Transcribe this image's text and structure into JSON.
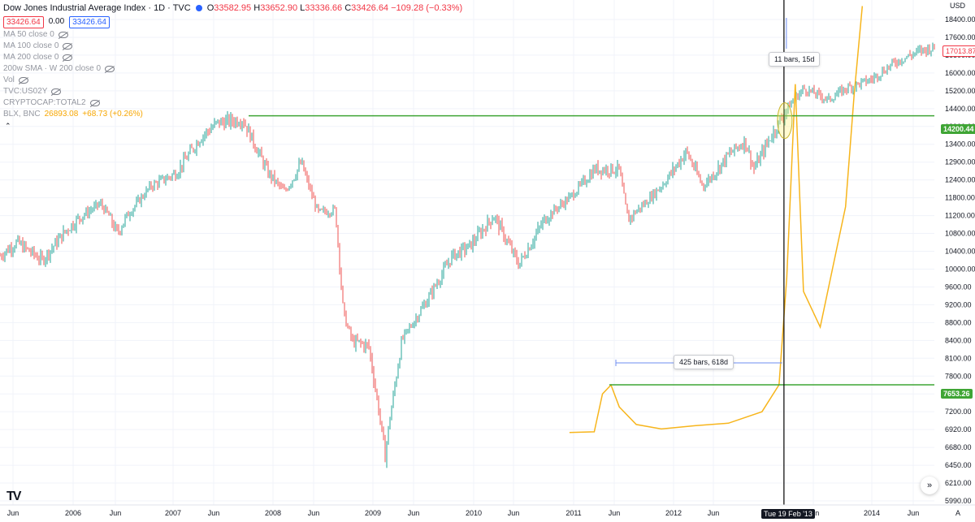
{
  "header": {
    "title": "Dow Jones Industrial Average Index · 1D · TVC",
    "ohlc": {
      "o_label": "O",
      "o": "33582.95",
      "h_label": "H",
      "h": "33652.90",
      "l_label": "L",
      "l": "33336.66",
      "c_label": "C",
      "c": "33426.64",
      "chg": "−109.28 (−0.33%)"
    },
    "chips": {
      "sell": "33426.64",
      "spread": "0.00",
      "buy": "33426.64"
    }
  },
  "indicators": [
    "MA 50 close 0",
    "MA 100 close 0",
    "MA 200 close 0",
    "200w SMA · W 200 close 0",
    "Vol",
    "TVC:US02Y",
    "CRYPTOCAP:TOTAL2"
  ],
  "blx_row": {
    "name": "BLX, BNC",
    "value": "26893.08",
    "change": "+68.73 (+0.26%)"
  },
  "price_axis": {
    "currency": "USD",
    "ticks": [
      "18400.00",
      "17600.00",
      "16800.00",
      "16000.00",
      "15200.00",
      "14400.00",
      "13900.00",
      "13400.00",
      "12900.00",
      "12400.00",
      "11800.00",
      "11200.00",
      "10800.00",
      "10400.00",
      "10000.00",
      "9600.00",
      "9200.00",
      "8800.00",
      "8400.00",
      "8100.00",
      "7800.00",
      "7500.00",
      "7200.00",
      "6920.00",
      "6680.00",
      "6450.00",
      "6210.00",
      "5990.00"
    ],
    "current_tag": "17013.87",
    "line_tag_upper": "14200.44",
    "line_tag_lower": "7653.26"
  },
  "time_axis": {
    "ticks": [
      "Jun",
      "2006",
      "Jun",
      "2007",
      "Jun",
      "2008",
      "Jun",
      "2009",
      "Jun",
      "2010",
      "Jun",
      "2011",
      "Jun",
      "2012",
      "Jun",
      "Jun",
      "2014",
      "Jun"
    ],
    "crosshair_date": "Tue 19 Feb '13"
  },
  "annotations": {
    "upper_measure": "11 bars, 15d",
    "lower_measure": "425 bars, 618d"
  },
  "footer": {
    "logo": "TV",
    "nav_icon": "double-chevron-right-icon",
    "auto_label": "A"
  },
  "colors": {
    "dow_up": "#26a69a",
    "dow_down": "#ef5350",
    "blx": "#f7b51c",
    "hline": "#3fa535",
    "measure": "#6d8cf2",
    "crosshair": "#000000",
    "tag_red": "#f23645",
    "tag_green": "#3fa535"
  },
  "chart_data": {
    "type": "line",
    "series": [
      {
        "name": "Dow Jones Industrial Average Index",
        "x": [
          "2005-05",
          "2005-07",
          "2005-10",
          "2006-01",
          "2006-05",
          "2006-07",
          "2006-11",
          "2007-02",
          "2007-05",
          "2007-07",
          "2007-10",
          "2008-01",
          "2008-03",
          "2008-05",
          "2008-07",
          "2008-09",
          "2008-10",
          "2008-11",
          "2009-01",
          "2009-03",
          "2009-05",
          "2009-08",
          "2009-11",
          "2010-01",
          "2010-04",
          "2010-07",
          "2010-10",
          "2011-01",
          "2011-04",
          "2011-07",
          "2011-08",
          "2011-10",
          "2011-12",
          "2012-03",
          "2012-05",
          "2012-08",
          "2012-10",
          "2012-11",
          "2013-01",
          "2013-02",
          "2013-05",
          "2013-08",
          "2013-10",
          "2014-01",
          "2014-04",
          "2014-07",
          "2014-08"
        ],
        "values": [
          10300,
          10600,
          10200,
          10900,
          11600,
          10800,
          12200,
          12600,
          13600,
          14000,
          14100,
          12600,
          12000,
          12900,
          11300,
          11400,
          9000,
          8400,
          8300,
          6550,
          8400,
          9300,
          10300,
          10500,
          11200,
          10100,
          11100,
          11800,
          12700,
          12700,
          11100,
          11600,
          12200,
          13200,
          12200,
          13100,
          13500,
          12700,
          13600,
          14000,
          15300,
          14800,
          15300,
          15700,
          16500,
          17000,
          17100
        ]
      },
      {
        "name": "BLX, BNC",
        "x": [
          "2011-01",
          "2011-04",
          "2011-05",
          "2011-06",
          "2011-07",
          "2011-09",
          "2011-12",
          "2012-04",
          "2012-08",
          "2012-12",
          "2013-02",
          "2013-03",
          "2013-04",
          "2013-05",
          "2013-07",
          "2013-10",
          "2013-11",
          "2013-12"
        ],
        "values": [
          6880,
          6890,
          7500,
          7650,
          7280,
          7000,
          6930,
          6980,
          7020,
          7200,
          7653,
          9800,
          15500,
          9500,
          8700,
          11500,
          15000,
          19000
        ]
      }
    ],
    "hlines": [
      14200.44,
      7653.26
    ],
    "crosshair_x": "2013-02-19",
    "ylabel": "USD"
  }
}
